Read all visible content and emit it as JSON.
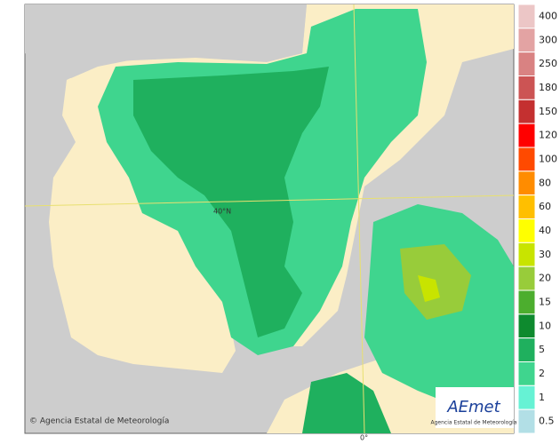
{
  "map": {
    "credit": "© Agencia Estatal de Meteorología",
    "latitude_label": "40°N",
    "longitude_label": "0°"
  },
  "logo": {
    "name": "AEmet",
    "subtitle": "Agencia Estatal de Meteorología"
  },
  "legend": {
    "items": [
      {
        "label": 400,
        "color": "#ecc6c6"
      },
      {
        "label": 300,
        "color": "#e3a3a3"
      },
      {
        "label": 250,
        "color": "#d98282"
      },
      {
        "label": 180,
        "color": "#cc5454"
      },
      {
        "label": 150,
        "color": "#c43030"
      },
      {
        "label": 120,
        "color": "#ff0000"
      },
      {
        "label": 100,
        "color": "#ff4a00"
      },
      {
        "label": 80,
        "color": "#ff8c00"
      },
      {
        "label": 60,
        "color": "#ffbf00"
      },
      {
        "label": 40,
        "color": "#ffff00"
      },
      {
        "label": 30,
        "color": "#c8e400"
      },
      {
        "label": 20,
        "color": "#98cc3a"
      },
      {
        "label": 15,
        "color": "#4cae2e"
      },
      {
        "label": 10,
        "color": "#0e8a2e"
      },
      {
        "label": 5,
        "color": "#1fb05e"
      },
      {
        "label": 2,
        "color": "#3fd58e"
      },
      {
        "label": 1,
        "color": "#66f2d4"
      },
      {
        "label": 0.5,
        "color": "#b2dfe6"
      }
    ]
  }
}
